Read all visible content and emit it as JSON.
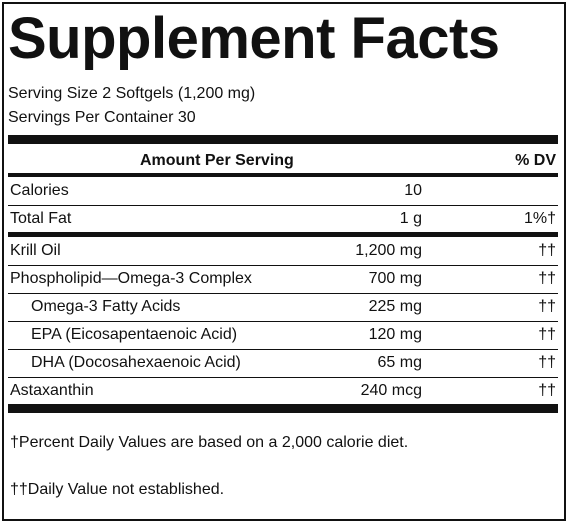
{
  "title": "Supplement Facts",
  "serving_size": "Serving Size 2 Softgels (1,200 mg)",
  "servings_per_container": "Servings Per Container 30",
  "header": {
    "amount": "Amount Per Serving",
    "dv": "% DV"
  },
  "rows": [
    {
      "name": "Calories",
      "amount": "10",
      "dv": ""
    },
    {
      "name": "Total Fat",
      "amount": "1 g",
      "dv": "1%†"
    },
    {
      "name": "Krill Oil",
      "amount": "1,200 mg",
      "dv": "††"
    },
    {
      "name": "Phospholipid—Omega-3 Complex",
      "amount": "700 mg",
      "dv": "††"
    },
    {
      "name": "Omega-3 Fatty Acids",
      "amount": "225 mg",
      "dv": "††"
    },
    {
      "name": "EPA (Eicosapentaenoic Acid)",
      "amount": "120 mg",
      "dv": "††"
    },
    {
      "name": "DHA (Docosahexaenoic Acid)",
      "amount": "65 mg",
      "dv": "††"
    },
    {
      "name": "Astaxanthin",
      "amount": "240 mcg",
      "dv": "††"
    }
  ],
  "footnotes": [
    "†Percent Daily Values are based on a 2,000 calorie diet.",
    "††Daily Value not established."
  ]
}
